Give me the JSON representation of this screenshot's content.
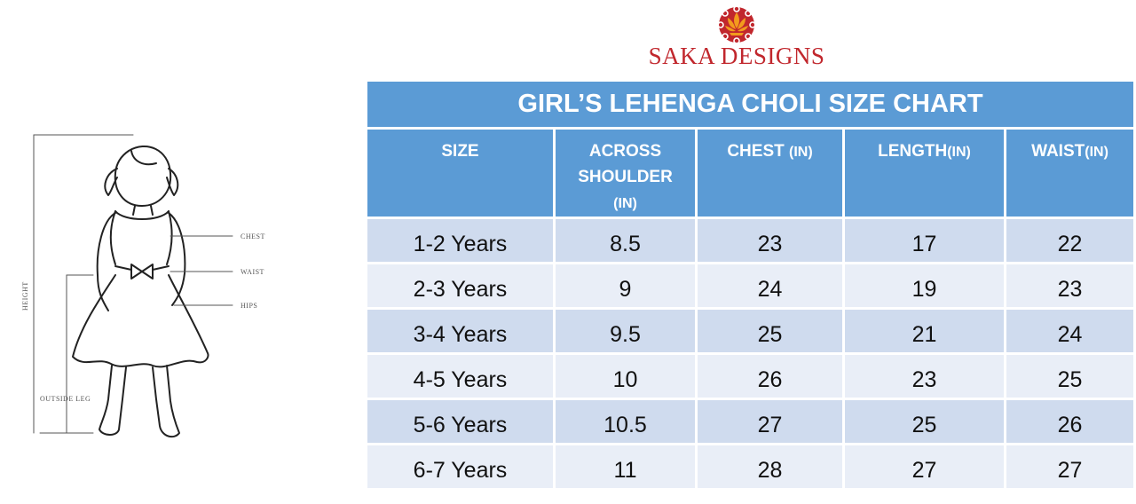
{
  "brand": {
    "name": "SAKA DESIGNS",
    "logo_icon": "lotus-icon",
    "color": "#c1272d"
  },
  "illustration": {
    "icon": "girl-dress-figure-icon",
    "labels": {
      "height": "HEIGHT",
      "chest": "CHEST",
      "waist": "WAIST",
      "hips": "HIPS",
      "outside_leg": "OUTSIDE LEG"
    }
  },
  "table": {
    "title": "GIRL’S LEHENGA CHOLI SIZE CHART",
    "header_color": "#5b9bd5",
    "columns": [
      {
        "lines": [
          "SIZE"
        ],
        "unit": ""
      },
      {
        "lines": [
          "ACROSS",
          "SHOULDER"
        ],
        "unit": "(IN)"
      },
      {
        "lines": [
          "CHEST "
        ],
        "unit": "(IN)"
      },
      {
        "lines": [
          "LENGTH"
        ],
        "unit": "(IN)"
      },
      {
        "lines": [
          "WAIST"
        ],
        "unit": "(IN)"
      }
    ],
    "rows": [
      [
        "1-2 Years",
        "8.5",
        "23",
        "17",
        "22"
      ],
      [
        "2-3 Years",
        "9",
        "24",
        "19",
        "23"
      ],
      [
        "3-4 Years",
        "9.5",
        "25",
        "21",
        "24"
      ],
      [
        "4-5 Years",
        "10",
        "26",
        "23",
        "25"
      ],
      [
        "5-6 Years",
        "10.5",
        "27",
        "25",
        "26"
      ],
      [
        "6-7 Years",
        "11",
        "28",
        "27",
        "27"
      ]
    ]
  }
}
